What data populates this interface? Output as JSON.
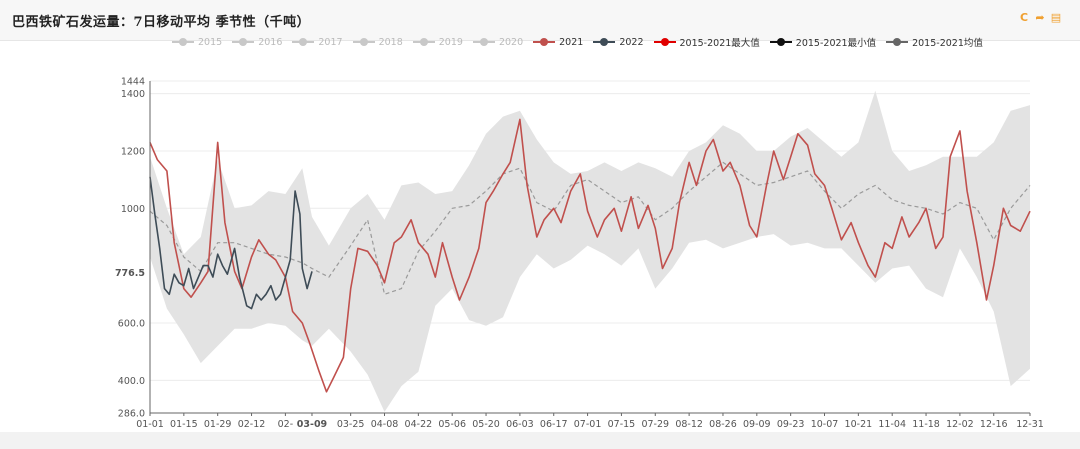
{
  "header": {
    "title": "巴西铁矿石发运量：7日移动平均 季节性（千吨）"
  },
  "toolbar": [
    {
      "icon": "refresh-icon",
      "glyph": "C"
    },
    {
      "icon": "share-icon",
      "glyph": "➦"
    },
    {
      "icon": "export-icon",
      "glyph": "▤"
    }
  ],
  "colors": {
    "inactive": "#c8c8c8",
    "s2021": "#c0504d",
    "s2022": "#3e4c57",
    "max": "#e00000",
    "min": "#111111",
    "avg": "#666666",
    "band": "#e3e3e3",
    "avg_line": "#9a9a9a"
  },
  "legend": [
    {
      "label": "2015",
      "color": "#c8c8c8",
      "active": false
    },
    {
      "label": "2016",
      "color": "#c8c8c8",
      "active": false
    },
    {
      "label": "2017",
      "color": "#c8c8c8",
      "active": false
    },
    {
      "label": "2018",
      "color": "#c8c8c8",
      "active": false
    },
    {
      "label": "2019",
      "color": "#c8c8c8",
      "active": false
    },
    {
      "label": "2020",
      "color": "#c8c8c8",
      "active": false
    },
    {
      "label": "2021",
      "color": "#c0504d",
      "active": true
    },
    {
      "label": "2022",
      "color": "#3e4c57",
      "active": true
    },
    {
      "label": "2015-2021最大值",
      "color": "#e00000",
      "active": true
    },
    {
      "label": "2015-2021最小值",
      "color": "#111111",
      "active": true
    },
    {
      "label": "2015-2021均值",
      "color": "#666666",
      "active": true
    }
  ],
  "chart_data": {
    "type": "line",
    "y_ticks": [
      {
        "value": 286,
        "label": "286.0"
      },
      {
        "value": 400,
        "label": "400.0"
      },
      {
        "value": 600,
        "label": "600.0"
      },
      {
        "value": 776.5,
        "label": "776.5",
        "highlight": true
      },
      {
        "value": 1000,
        "label": "1000"
      },
      {
        "value": 1200,
        "label": "1200"
      },
      {
        "value": 1400,
        "label": "1400"
      },
      {
        "value": 1444,
        "label": "1444"
      }
    ],
    "ylim": [
      286,
      1444
    ],
    "x_ticks": [
      {
        "day": 0,
        "label": "01-01"
      },
      {
        "day": 14,
        "label": "01-15"
      },
      {
        "day": 28,
        "label": "01-29"
      },
      {
        "day": 42,
        "label": "02-12"
      },
      {
        "day": 56,
        "label": "02-"
      },
      {
        "day": 67,
        "label": "03-09",
        "highlight": true
      },
      {
        "day": 83,
        "label": "03-25"
      },
      {
        "day": 97,
        "label": "04-08"
      },
      {
        "day": 111,
        "label": "04-22"
      },
      {
        "day": 125,
        "label": "05-06"
      },
      {
        "day": 139,
        "label": "05-20"
      },
      {
        "day": 153,
        "label": "06-03"
      },
      {
        "day": 167,
        "label": "06-17"
      },
      {
        "day": 181,
        "label": "07-01"
      },
      {
        "day": 195,
        "label": "07-15"
      },
      {
        "day": 209,
        "label": "07-29"
      },
      {
        "day": 223,
        "label": "08-12"
      },
      {
        "day": 237,
        "label": "08-26"
      },
      {
        "day": 251,
        "label": "09-09"
      },
      {
        "day": 265,
        "label": "09-23"
      },
      {
        "day": 279,
        "label": "10-07"
      },
      {
        "day": 293,
        "label": "10-21"
      },
      {
        "day": 307,
        "label": "11-04"
      },
      {
        "day": 321,
        "label": "11-18"
      },
      {
        "day": 335,
        "label": "12-02"
      },
      {
        "day": 349,
        "label": "12-16"
      },
      {
        "day": 364,
        "label": "12-31"
      }
    ],
    "xlim": [
      0,
      364
    ],
    "band_max": [
      [
        0,
        1180
      ],
      [
        7,
        1000
      ],
      [
        14,
        840
      ],
      [
        21,
        900
      ],
      [
        28,
        1170
      ],
      [
        35,
        1000
      ],
      [
        42,
        1010
      ],
      [
        49,
        1060
      ],
      [
        56,
        1050
      ],
      [
        63,
        1140
      ],
      [
        67,
        970
      ],
      [
        74,
        870
      ],
      [
        83,
        1000
      ],
      [
        90,
        1050
      ],
      [
        97,
        960
      ],
      [
        104,
        1080
      ],
      [
        111,
        1090
      ],
      [
        118,
        1050
      ],
      [
        125,
        1060
      ],
      [
        132,
        1150
      ],
      [
        139,
        1260
      ],
      [
        146,
        1320
      ],
      [
        153,
        1340
      ],
      [
        160,
        1240
      ],
      [
        167,
        1160
      ],
      [
        174,
        1120
      ],
      [
        181,
        1130
      ],
      [
        188,
        1160
      ],
      [
        195,
        1130
      ],
      [
        202,
        1160
      ],
      [
        209,
        1140
      ],
      [
        216,
        1110
      ],
      [
        223,
        1200
      ],
      [
        230,
        1230
      ],
      [
        237,
        1290
      ],
      [
        244,
        1260
      ],
      [
        251,
        1200
      ],
      [
        258,
        1200
      ],
      [
        265,
        1250
      ],
      [
        272,
        1280
      ],
      [
        279,
        1230
      ],
      [
        286,
        1180
      ],
      [
        293,
        1230
      ],
      [
        300,
        1410
      ],
      [
        307,
        1200
      ],
      [
        314,
        1130
      ],
      [
        321,
        1150
      ],
      [
        328,
        1180
      ],
      [
        335,
        1180
      ],
      [
        342,
        1180
      ],
      [
        349,
        1230
      ],
      [
        356,
        1340
      ],
      [
        364,
        1360
      ]
    ],
    "band_min": [
      [
        0,
        830
      ],
      [
        7,
        650
      ],
      [
        14,
        560
      ],
      [
        21,
        460
      ],
      [
        28,
        520
      ],
      [
        35,
        580
      ],
      [
        42,
        580
      ],
      [
        49,
        600
      ],
      [
        56,
        590
      ],
      [
        63,
        540
      ],
      [
        67,
        520
      ],
      [
        74,
        580
      ],
      [
        83,
        500
      ],
      [
        90,
        420
      ],
      [
        97,
        290
      ],
      [
        104,
        380
      ],
      [
        111,
        430
      ],
      [
        118,
        660
      ],
      [
        125,
        720
      ],
      [
        132,
        610
      ],
      [
        139,
        590
      ],
      [
        146,
        620
      ],
      [
        153,
        760
      ],
      [
        160,
        840
      ],
      [
        167,
        790
      ],
      [
        174,
        820
      ],
      [
        181,
        870
      ],
      [
        188,
        840
      ],
      [
        195,
        800
      ],
      [
        202,
        860
      ],
      [
        209,
        720
      ],
      [
        216,
        790
      ],
      [
        223,
        880
      ],
      [
        230,
        890
      ],
      [
        237,
        860
      ],
      [
        244,
        880
      ],
      [
        251,
        900
      ],
      [
        258,
        910
      ],
      [
        265,
        870
      ],
      [
        272,
        880
      ],
      [
        279,
        860
      ],
      [
        286,
        860
      ],
      [
        293,
        800
      ],
      [
        300,
        740
      ],
      [
        307,
        790
      ],
      [
        314,
        800
      ],
      [
        321,
        720
      ],
      [
        328,
        690
      ],
      [
        335,
        860
      ],
      [
        342,
        760
      ],
      [
        349,
        640
      ],
      [
        356,
        380
      ],
      [
        364,
        440
      ]
    ],
    "series": [
      {
        "name": "2015-2021均值",
        "style": "dashed",
        "points": [
          [
            0,
            990
          ],
          [
            7,
            940
          ],
          [
            14,
            830
          ],
          [
            21,
            780
          ],
          [
            28,
            880
          ],
          [
            35,
            880
          ],
          [
            42,
            860
          ],
          [
            49,
            840
          ],
          [
            56,
            830
          ],
          [
            63,
            810
          ],
          [
            67,
            790
          ],
          [
            74,
            760
          ],
          [
            83,
            870
          ],
          [
            90,
            960
          ],
          [
            97,
            700
          ],
          [
            104,
            720
          ],
          [
            111,
            850
          ],
          [
            118,
            920
          ],
          [
            125,
            1000
          ],
          [
            132,
            1010
          ],
          [
            139,
            1060
          ],
          [
            146,
            1120
          ],
          [
            153,
            1140
          ],
          [
            160,
            1020
          ],
          [
            167,
            990
          ],
          [
            174,
            1080
          ],
          [
            181,
            1100
          ],
          [
            188,
            1060
          ],
          [
            195,
            1020
          ],
          [
            202,
            1040
          ],
          [
            209,
            960
          ],
          [
            216,
            1000
          ],
          [
            223,
            1060
          ],
          [
            230,
            1110
          ],
          [
            237,
            1160
          ],
          [
            244,
            1120
          ],
          [
            251,
            1080
          ],
          [
            258,
            1090
          ],
          [
            265,
            1110
          ],
          [
            272,
            1130
          ],
          [
            279,
            1060
          ],
          [
            286,
            1000
          ],
          [
            293,
            1050
          ],
          [
            300,
            1080
          ],
          [
            307,
            1030
          ],
          [
            314,
            1010
          ],
          [
            321,
            1000
          ],
          [
            328,
            980
          ],
          [
            335,
            1020
          ],
          [
            342,
            1000
          ],
          [
            349,
            890
          ],
          [
            356,
            1000
          ],
          [
            364,
            1080
          ]
        ]
      },
      {
        "name": "2021",
        "style": "solid",
        "points": [
          [
            0,
            1230
          ],
          [
            3,
            1170
          ],
          [
            7,
            1130
          ],
          [
            10,
            880
          ],
          [
            14,
            720
          ],
          [
            17,
            690
          ],
          [
            21,
            740
          ],
          [
            24,
            780
          ],
          [
            28,
            1230
          ],
          [
            31,
            950
          ],
          [
            35,
            780
          ],
          [
            38,
            720
          ],
          [
            42,
            830
          ],
          [
            45,
            890
          ],
          [
            49,
            840
          ],
          [
            52,
            820
          ],
          [
            56,
            760
          ],
          [
            59,
            640
          ],
          [
            63,
            600
          ],
          [
            66,
            530
          ],
          [
            70,
            430
          ],
          [
            73,
            360
          ],
          [
            76,
            410
          ],
          [
            80,
            480
          ],
          [
            83,
            720
          ],
          [
            86,
            860
          ],
          [
            90,
            850
          ],
          [
            94,
            800
          ],
          [
            97,
            740
          ],
          [
            101,
            880
          ],
          [
            104,
            900
          ],
          [
            108,
            960
          ],
          [
            111,
            880
          ],
          [
            115,
            840
          ],
          [
            118,
            760
          ],
          [
            121,
            880
          ],
          [
            125,
            760
          ],
          [
            128,
            680
          ],
          [
            132,
            760
          ],
          [
            136,
            860
          ],
          [
            139,
            1020
          ],
          [
            142,
            1060
          ],
          [
            146,
            1120
          ],
          [
            149,
            1160
          ],
          [
            153,
            1310
          ],
          [
            156,
            1080
          ],
          [
            160,
            900
          ],
          [
            163,
            960
          ],
          [
            167,
            1000
          ],
          [
            170,
            950
          ],
          [
            174,
            1060
          ],
          [
            178,
            1120
          ],
          [
            181,
            990
          ],
          [
            185,
            900
          ],
          [
            188,
            960
          ],
          [
            192,
            1000
          ],
          [
            195,
            920
          ],
          [
            199,
            1040
          ],
          [
            202,
            930
          ],
          [
            206,
            1010
          ],
          [
            209,
            930
          ],
          [
            212,
            790
          ],
          [
            216,
            860
          ],
          [
            219,
            1020
          ],
          [
            223,
            1160
          ],
          [
            226,
            1080
          ],
          [
            230,
            1200
          ],
          [
            233,
            1240
          ],
          [
            237,
            1130
          ],
          [
            240,
            1160
          ],
          [
            244,
            1080
          ],
          [
            248,
            940
          ],
          [
            251,
            900
          ],
          [
            255,
            1080
          ],
          [
            258,
            1200
          ],
          [
            262,
            1100
          ],
          [
            265,
            1180
          ],
          [
            268,
            1260
          ],
          [
            272,
            1220
          ],
          [
            275,
            1120
          ],
          [
            279,
            1080
          ],
          [
            282,
            1000
          ],
          [
            286,
            890
          ],
          [
            290,
            950
          ],
          [
            293,
            880
          ],
          [
            297,
            800
          ],
          [
            300,
            760
          ],
          [
            304,
            880
          ],
          [
            307,
            860
          ],
          [
            311,
            970
          ],
          [
            314,
            900
          ],
          [
            318,
            950
          ],
          [
            321,
            1000
          ],
          [
            325,
            860
          ],
          [
            328,
            900
          ],
          [
            331,
            1180
          ],
          [
            335,
            1270
          ],
          [
            338,
            1060
          ],
          [
            342,
            880
          ],
          [
            346,
            680
          ],
          [
            349,
            800
          ],
          [
            353,
            1000
          ],
          [
            356,
            940
          ],
          [
            360,
            920
          ],
          [
            364,
            990
          ]
        ]
      },
      {
        "name": "2022",
        "style": "solid",
        "points": [
          [
            0,
            1110
          ],
          [
            2,
            980
          ],
          [
            4,
            860
          ],
          [
            6,
            720
          ],
          [
            8,
            700
          ],
          [
            10,
            770
          ],
          [
            12,
            740
          ],
          [
            14,
            730
          ],
          [
            16,
            790
          ],
          [
            18,
            720
          ],
          [
            20,
            760
          ],
          [
            22,
            800
          ],
          [
            24,
            800
          ],
          [
            26,
            760
          ],
          [
            28,
            840
          ],
          [
            30,
            800
          ],
          [
            32,
            770
          ],
          [
            35,
            860
          ],
          [
            37,
            760
          ],
          [
            40,
            660
          ],
          [
            42,
            650
          ],
          [
            44,
            700
          ],
          [
            46,
            680
          ],
          [
            48,
            700
          ],
          [
            50,
            730
          ],
          [
            52,
            680
          ],
          [
            54,
            700
          ],
          [
            56,
            760
          ],
          [
            58,
            820
          ],
          [
            60,
            1060
          ],
          [
            62,
            980
          ],
          [
            63,
            790
          ],
          [
            65,
            720
          ],
          [
            67,
            780
          ]
        ]
      }
    ]
  }
}
